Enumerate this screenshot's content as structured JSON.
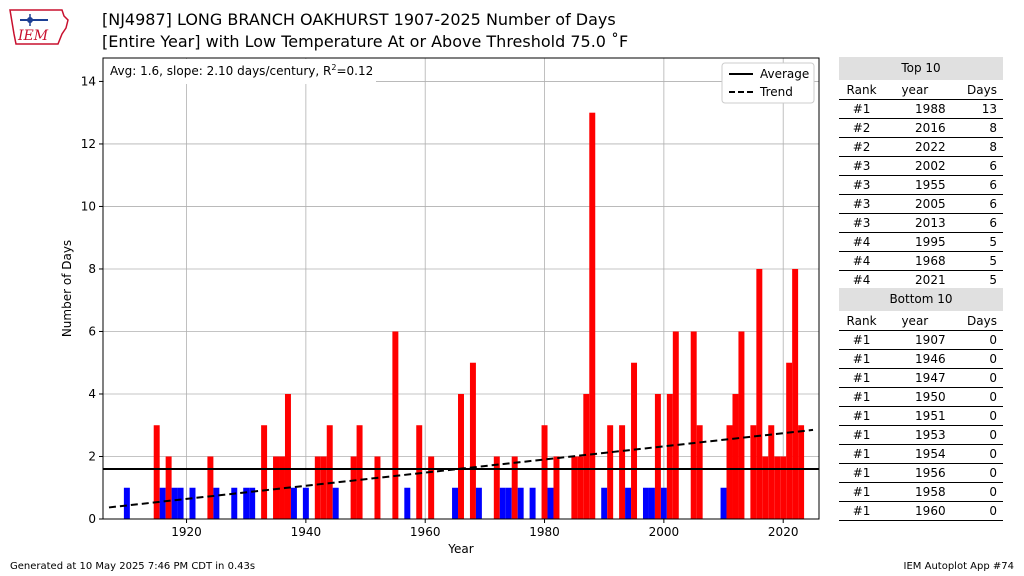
{
  "logo": {
    "text": "IEM"
  },
  "header": {
    "title_line1": "[NJ4987] LONG BRANCH OAKHURST 1907-2025 Number of Days",
    "title_line2": "[Entire Year] with Low Temperature At or Above Threshold 75.0 ˚F"
  },
  "chart_data": {
    "type": "bar",
    "xlabel": "Year",
    "ylabel": "Number of Days",
    "xlim": [
      1906,
      2026
    ],
    "ylim": [
      0,
      14.75
    ],
    "xticks": [
      1920,
      1940,
      1960,
      1980,
      2000,
      2020
    ],
    "yticks": [
      0,
      2,
      4,
      6,
      8,
      10,
      12,
      14
    ],
    "grid": true,
    "average": 1.6,
    "stats_text_prefix": "Avg: 1.6, slope: 2.10 days/century, R",
    "stats_text_sup": "2",
    "stats_text_suffix": "=0.12",
    "trend": {
      "x": [
        1907,
        2025
      ],
      "y": [
        0.37,
        2.85
      ]
    },
    "legend": {
      "position": "top-right",
      "entries": [
        "Average",
        "Trend"
      ]
    },
    "colors": {
      "above": "#ff0000",
      "below": "#0000ff"
    },
    "bars": [
      {
        "x": 1910,
        "y": 1
      },
      {
        "x": 1915,
        "y": 3
      },
      {
        "x": 1916,
        "y": 1
      },
      {
        "x": 1917,
        "y": 2
      },
      {
        "x": 1918,
        "y": 1
      },
      {
        "x": 1919,
        "y": 1
      },
      {
        "x": 1921,
        "y": 1
      },
      {
        "x": 1924,
        "y": 2
      },
      {
        "x": 1925,
        "y": 1
      },
      {
        "x": 1928,
        "y": 1
      },
      {
        "x": 1930,
        "y": 1
      },
      {
        "x": 1931,
        "y": 1
      },
      {
        "x": 1933,
        "y": 3
      },
      {
        "x": 1935,
        "y": 2
      },
      {
        "x": 1936,
        "y": 2
      },
      {
        "x": 1937,
        "y": 4
      },
      {
        "x": 1938,
        "y": 1
      },
      {
        "x": 1940,
        "y": 1
      },
      {
        "x": 1942,
        "y": 2
      },
      {
        "x": 1943,
        "y": 2
      },
      {
        "x": 1944,
        "y": 3
      },
      {
        "x": 1945,
        "y": 1
      },
      {
        "x": 1948,
        "y": 2
      },
      {
        "x": 1949,
        "y": 3
      },
      {
        "x": 1952,
        "y": 2
      },
      {
        "x": 1955,
        "y": 6
      },
      {
        "x": 1957,
        "y": 1
      },
      {
        "x": 1959,
        "y": 3
      },
      {
        "x": 1961,
        "y": 2
      },
      {
        "x": 1965,
        "y": 1
      },
      {
        "x": 1966,
        "y": 4
      },
      {
        "x": 1968,
        "y": 5
      },
      {
        "x": 1969,
        "y": 1
      },
      {
        "x": 1972,
        "y": 2
      },
      {
        "x": 1973,
        "y": 1
      },
      {
        "x": 1974,
        "y": 1
      },
      {
        "x": 1975,
        "y": 2
      },
      {
        "x": 1976,
        "y": 1
      },
      {
        "x": 1978,
        "y": 1
      },
      {
        "x": 1980,
        "y": 3
      },
      {
        "x": 1981,
        "y": 1
      },
      {
        "x": 1982,
        "y": 2
      },
      {
        "x": 1985,
        "y": 2
      },
      {
        "x": 1986,
        "y": 2
      },
      {
        "x": 1987,
        "y": 4
      },
      {
        "x": 1988,
        "y": 13
      },
      {
        "x": 1990,
        "y": 1
      },
      {
        "x": 1991,
        "y": 3
      },
      {
        "x": 1993,
        "y": 3
      },
      {
        "x": 1994,
        "y": 1
      },
      {
        "x": 1995,
        "y": 5
      },
      {
        "x": 1997,
        "y": 1
      },
      {
        "x": 1998,
        "y": 1
      },
      {
        "x": 1999,
        "y": 4
      },
      {
        "x": 2000,
        "y": 1
      },
      {
        "x": 2001,
        "y": 4
      },
      {
        "x": 2002,
        "y": 6
      },
      {
        "x": 2005,
        "y": 6
      },
      {
        "x": 2006,
        "y": 3
      },
      {
        "x": 2010,
        "y": 1
      },
      {
        "x": 2011,
        "y": 3
      },
      {
        "x": 2012,
        "y": 4
      },
      {
        "x": 2013,
        "y": 6
      },
      {
        "x": 2015,
        "y": 3
      },
      {
        "x": 2016,
        "y": 8
      },
      {
        "x": 2017,
        "y": 2
      },
      {
        "x": 2018,
        "y": 3
      },
      {
        "x": 2019,
        "y": 2
      },
      {
        "x": 2020,
        "y": 2
      },
      {
        "x": 2021,
        "y": 5
      },
      {
        "x": 2022,
        "y": 8
      },
      {
        "x": 2023,
        "y": 3
      }
    ]
  },
  "top10": {
    "title": "Top 10",
    "columns": [
      "Rank",
      "year",
      "Days"
    ],
    "rows": [
      [
        "#1",
        "1988",
        "13"
      ],
      [
        "#2",
        "2016",
        "8"
      ],
      [
        "#2",
        "2022",
        "8"
      ],
      [
        "#3",
        "2002",
        "6"
      ],
      [
        "#3",
        "1955",
        "6"
      ],
      [
        "#3",
        "2005",
        "6"
      ],
      [
        "#3",
        "2013",
        "6"
      ],
      [
        "#4",
        "1995",
        "5"
      ],
      [
        "#4",
        "1968",
        "5"
      ],
      [
        "#4",
        "2021",
        "5"
      ]
    ]
  },
  "bottom10": {
    "title": "Bottom 10",
    "columns": [
      "Rank",
      "year",
      "Days"
    ],
    "rows": [
      [
        "#1",
        "1907",
        "0"
      ],
      [
        "#1",
        "1946",
        "0"
      ],
      [
        "#1",
        "1947",
        "0"
      ],
      [
        "#1",
        "1950",
        "0"
      ],
      [
        "#1",
        "1951",
        "0"
      ],
      [
        "#1",
        "1953",
        "0"
      ],
      [
        "#1",
        "1954",
        "0"
      ],
      [
        "#1",
        "1956",
        "0"
      ],
      [
        "#1",
        "1958",
        "0"
      ],
      [
        "#1",
        "1960",
        "0"
      ]
    ]
  },
  "footer": {
    "generated": "Generated at 10 May 2025 7:46 PM CDT in 0.43s",
    "app": "IEM Autoplot App #74"
  }
}
